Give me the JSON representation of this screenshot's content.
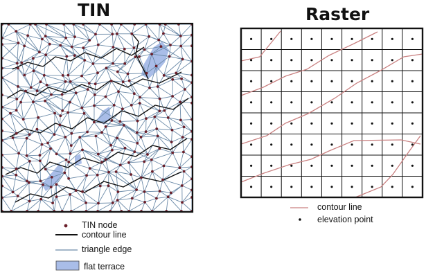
{
  "tin": {
    "title": "TIN",
    "legend": {
      "node": "TIN node",
      "contour": "contour line",
      "edge": "triangle edge",
      "terrace": "flat terrace"
    }
  },
  "raster": {
    "title": "Raster",
    "legend": {
      "contour": "contour line",
      "elevation": "elevation point"
    },
    "grid_columns": 9,
    "grid_rows": 8
  },
  "colors": {
    "tin_edge": "#6b8aa8",
    "tin_contour": "#111111",
    "tin_node": "#6a1f2a",
    "terrace_fill": "#a9bde8",
    "raster_contour": "#c98080",
    "grid_line": "#111111"
  }
}
